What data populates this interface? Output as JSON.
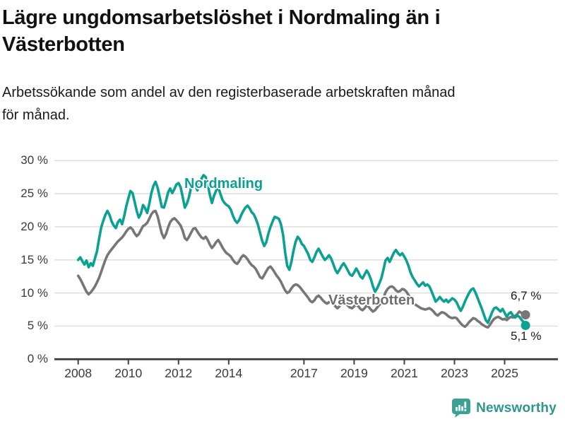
{
  "page": {
    "title": "Lägre ungdomsarbetslöshet i Nordmaling än i\nVästerbotten",
    "subtitle": "Arbetssökande som andel av den registerbaserade arbetskraften månad\nför månad."
  },
  "annotations": {
    "end_label_top": "6,7 %",
    "end_label_bottom": "5,1 %"
  },
  "footer": {
    "brand": "Newsworthy",
    "brand_color": "#2e968e",
    "logo_color": "#3da096"
  },
  "chart_data": {
    "type": "line",
    "title": "Lägre ungdomsarbetslöshet i Nordmaling än i Västerbotten",
    "subtitle": "Arbetssökande som andel av den registerbaserade arbetskraften månad för månad.",
    "unit": "%",
    "x_start": "2008-01",
    "x_end": "2025-11",
    "x_frequency": "monthly",
    "x_tick_years": [
      2008,
      2010,
      2012,
      2014,
      2017,
      2019,
      2021,
      2023,
      2025
    ],
    "y_ticks": [
      {
        "value": 0,
        "label": "0 %"
      },
      {
        "value": 5,
        "label": "5 %"
      },
      {
        "value": 10,
        "label": "10 %"
      },
      {
        "value": 15,
        "label": "15 %"
      },
      {
        "value": 20,
        "label": "20 %"
      },
      {
        "value": 25,
        "label": "25 %"
      },
      {
        "value": 30,
        "label": "30 %"
      }
    ],
    "ylim": [
      0,
      30
    ],
    "grid": true,
    "legend_position": "inline-labels",
    "series": [
      {
        "name": "Västerbotten",
        "color": "#767676",
        "last_value_label": "6,7 %",
        "values": [
          12.6,
          12.1,
          11.5,
          10.8,
          10.2,
          9.8,
          10.1,
          10.5,
          11.0,
          11.6,
          12.3,
          13.2,
          14.1,
          15.0,
          15.7,
          16.2,
          16.6,
          17.0,
          17.4,
          17.8,
          18.1,
          18.4,
          18.8,
          19.3,
          19.7,
          19.9,
          19.6,
          19.0,
          18.6,
          18.9,
          19.5,
          20.1,
          20.3,
          20.6,
          21.2,
          21.9,
          22.3,
          22.4,
          21.6,
          20.3,
          19.0,
          18.3,
          18.9,
          19.9,
          20.7,
          21.1,
          21.3,
          21.0,
          20.6,
          20.2,
          19.4,
          18.3,
          18.0,
          18.5,
          19.1,
          19.7,
          19.8,
          19.3,
          18.8,
          18.4,
          18.2,
          18.5,
          18.0,
          17.3,
          16.8,
          17.2,
          17.7,
          18.0,
          17.5,
          16.9,
          16.4,
          16.0,
          15.8,
          15.5,
          15.0,
          14.6,
          14.4,
          14.8,
          15.4,
          15.7,
          15.5,
          15.1,
          14.6,
          14.2,
          14.0,
          13.6,
          13.0,
          12.4,
          12.2,
          12.7,
          13.3,
          13.8,
          14.0,
          13.6,
          13.1,
          12.6,
          12.2,
          11.7,
          11.0,
          10.4,
          10.0,
          10.2,
          10.7,
          11.1,
          11.3,
          11.2,
          10.9,
          10.5,
          10.1,
          9.7,
          9.3,
          8.8,
          8.6,
          8.9,
          9.4,
          9.6,
          9.3,
          8.9,
          8.6,
          8.4,
          8.6,
          8.8,
          8.4,
          8.0,
          7.7,
          8.0,
          8.5,
          8.8,
          8.5,
          8.1,
          7.8,
          7.7,
          8.0,
          8.3,
          8.0,
          7.6,
          7.4,
          7.7,
          8.1,
          7.9,
          7.5,
          7.2,
          7.4,
          7.8,
          8.2,
          8.5,
          9.2,
          10.1,
          10.6,
          10.9,
          11.0,
          10.8,
          10.4,
          10.2,
          10.3,
          10.6,
          10.5,
          10.2,
          9.7,
          9.1,
          8.6,
          8.3,
          8.1,
          7.9,
          7.7,
          7.6,
          7.5,
          7.6,
          7.7,
          7.5,
          7.2,
          6.8,
          6.6,
          6.9,
          7.1,
          7.0,
          6.8,
          6.5,
          6.3,
          6.2,
          6.3,
          6.2,
          5.8,
          5.4,
          5.1,
          4.9,
          5.2,
          5.6,
          5.9,
          6.2,
          6.1,
          5.8,
          5.6,
          5.3,
          5.1,
          4.9,
          4.8,
          5.2,
          5.7,
          6.1,
          6.3,
          6.4,
          6.2,
          6.0,
          6.1,
          5.9,
          6.2,
          6.4,
          6.3,
          6.5,
          6.8,
          7.2,
          7.0,
          6.9,
          6.7
        ]
      },
      {
        "name": "Nordmaling",
        "color": "#0ba192",
        "last_value_label": "5,1 %",
        "values": [
          15.0,
          15.4,
          14.8,
          14.3,
          14.9,
          13.9,
          14.5,
          14.1,
          15.2,
          16.3,
          18.2,
          19.9,
          20.9,
          21.8,
          22.4,
          21.8,
          20.8,
          20.2,
          19.8,
          20.7,
          21.1,
          20.4,
          21.6,
          23.1,
          24.3,
          25.4,
          25.1,
          23.8,
          22.4,
          21.4,
          22.0,
          23.3,
          22.8,
          22.1,
          23.4,
          25.1,
          26.2,
          26.8,
          25.9,
          24.5,
          23.0,
          22.9,
          23.9,
          25.2,
          25.8,
          25.1,
          25.7,
          26.4,
          26.6,
          26.0,
          24.5,
          22.9,
          23.5,
          24.5,
          25.9,
          27.0,
          26.3,
          25.5,
          26.3,
          27.3,
          27.8,
          27.5,
          26.4,
          24.8,
          23.6,
          24.7,
          25.5,
          26.0,
          25.0,
          24.1,
          23.6,
          23.3,
          23.1,
          22.6,
          21.7,
          21.0,
          20.6,
          21.0,
          21.8,
          22.4,
          22.9,
          23.2,
          22.8,
          22.2,
          21.9,
          21.2,
          20.3,
          19.1,
          17.9,
          17.1,
          17.7,
          19.0,
          20.0,
          20.8,
          21.5,
          21.4,
          21.2,
          20.4,
          18.8,
          16.2,
          14.1,
          13.5,
          14.7,
          16.4,
          17.7,
          18.5,
          18.1,
          17.4,
          17.1,
          16.5,
          15.9,
          15.0,
          14.7,
          15.4,
          16.2,
          16.7,
          16.1,
          15.5,
          15.0,
          15.3,
          15.7,
          15.2,
          14.4,
          13.5,
          13.0,
          13.5,
          14.1,
          14.5,
          14.0,
          13.4,
          12.8,
          12.6,
          13.1,
          13.7,
          13.2,
          12.5,
          12.2,
          12.8,
          13.4,
          12.9,
          12.1,
          11.0,
          10.2,
          10.7,
          11.4,
          12.2,
          13.5,
          14.9,
          15.3,
          14.7,
          15.4,
          16.1,
          16.5,
          16.0,
          15.7,
          16.0,
          15.5,
          14.9,
          14.1,
          13.1,
          12.4,
          11.9,
          11.4,
          11.0,
          11.3,
          11.6,
          11.1,
          11.3,
          11.0,
          10.3,
          9.5,
          8.7,
          9.0,
          9.4,
          9.0,
          8.7,
          9.0,
          8.6,
          8.9,
          9.2,
          9.0,
          8.6,
          7.9,
          7.3,
          7.9,
          8.7,
          9.4,
          10.0,
          10.5,
          10.7,
          10.1,
          9.3,
          8.5,
          7.7,
          6.8,
          5.9,
          5.5,
          6.3,
          7.1,
          7.7,
          7.8,
          7.5,
          7.2,
          7.6,
          7.0,
          6.4,
          6.9,
          7.1,
          6.6,
          6.3,
          6.6,
          6.4,
          6.0,
          5.6,
          5.1
        ]
      }
    ]
  }
}
